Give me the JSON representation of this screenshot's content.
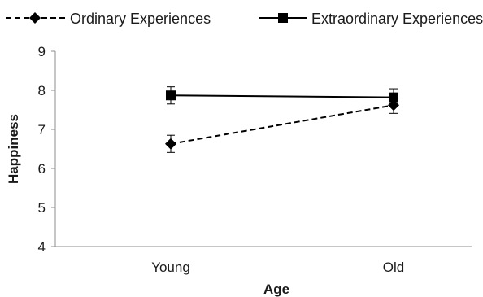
{
  "chart_data": {
    "type": "line",
    "categories": [
      "Young",
      "Old"
    ],
    "xlabel": "Age",
    "ylabel": "Happiness",
    "ylim": [
      4,
      9
    ],
    "yticks": [
      4,
      5,
      6,
      7,
      8,
      9
    ],
    "grid": false,
    "legend": "top",
    "series": [
      {
        "name": "Ordinary Experiences",
        "values": [
          6.63,
          7.62
        ],
        "errors": [
          0.22,
          0.21
        ],
        "marker": "diamond",
        "line_style": "dashed",
        "color": "#000000"
      },
      {
        "name": "Extraordinary Experiences",
        "values": [
          7.87,
          7.82
        ],
        "errors": [
          0.22,
          0.22
        ],
        "marker": "square",
        "line_style": "solid",
        "color": "#000000"
      }
    ]
  }
}
